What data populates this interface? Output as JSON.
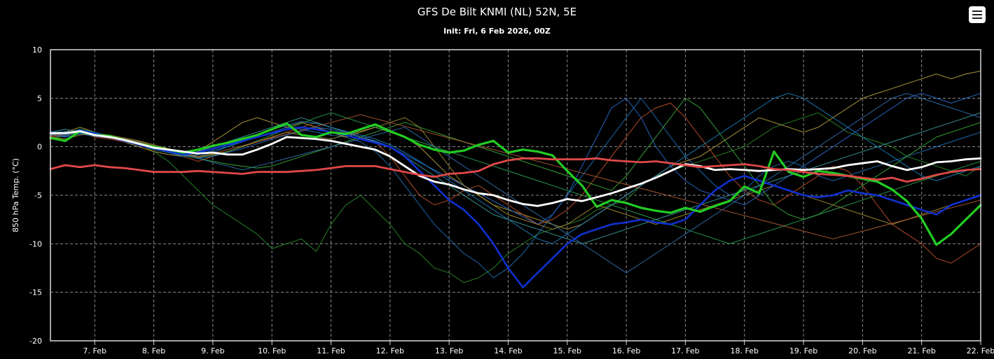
{
  "chart_data": {
    "type": "line",
    "title": "GFS De Bilt KNMI (NL) 52N, 5E",
    "subtitle": "Init: Fri, 6 Feb 2026, 00Z",
    "ylabel": "850 hPa Temp. (°C)",
    "xlabel": "",
    "ylim": [
      -20,
      10
    ],
    "yticks": [
      10,
      5,
      0,
      -5,
      -10,
      -15,
      -20
    ],
    "x_start_day": 6.25,
    "x_end_day": 22.0,
    "x_step_hours": 6,
    "xticks": [
      "7. Feb",
      "8. Feb",
      "9. Feb",
      "10. Feb",
      "11. Feb",
      "12. Feb",
      "13. Feb",
      "14. Feb",
      "15. Feb",
      "16. Feb",
      "17. Feb",
      "18. Feb",
      "19. Feb",
      "20. Feb",
      "21. Feb",
      "22. Feb"
    ],
    "xtick_days": [
      7,
      8,
      9,
      10,
      11,
      12,
      13,
      14,
      15,
      16,
      17,
      18,
      19,
      20,
      21,
      22
    ],
    "grid": true,
    "legend": "none",
    "series": [
      {
        "role": "member",
        "color": "#2a8a2a",
        "values": [
          1.0,
          0.5,
          1.5,
          1.0,
          1.2,
          0.8,
          0.3,
          -0.5,
          -1.5,
          -3.0,
          -4.5,
          -6.0,
          -7.0,
          -8.0,
          -9.0,
          -10.5,
          -10.0,
          -9.5,
          -10.8,
          -8.0,
          -6.0,
          -5.0,
          -6.5,
          -8.0,
          -10.0,
          -11.0,
          -12.5,
          -13.0,
          -14.0,
          -13.5,
          -12.5,
          -11.0,
          -10.0,
          -9.0,
          -8.5,
          -8.0,
          -7.5,
          -6.5,
          -6.0,
          -5.5,
          -4.0,
          -3.0,
          -2.5,
          -2.0,
          -1.5,
          -1.0,
          -0.5,
          0.0,
          1.0,
          2.0,
          2.5,
          3.0,
          3.5,
          2.5,
          1.5,
          1.0,
          0.5,
          0.0,
          -1.0,
          -1.5,
          -2.0,
          -2.5,
          -3.0,
          -2.0
        ]
      },
      {
        "role": "member",
        "color": "#1f6fb5",
        "values": [
          1.5,
          1.0,
          1.8,
          1.2,
          1.0,
          0.5,
          0.2,
          -0.2,
          -0.5,
          -0.8,
          -1.0,
          -0.6,
          0.0,
          0.5,
          1.0,
          1.5,
          2.0,
          1.8,
          1.5,
          1.2,
          1.0,
          0.5,
          -0.5,
          -2.0,
          -4.0,
          -6.0,
          -8.0,
          -9.5,
          -11.0,
          -12.0,
          -13.5,
          -12.5,
          -11.0,
          -9.0,
          -7.0,
          -5.0,
          -3.0,
          -1.0,
          1.0,
          3.0,
          5.0,
          3.0,
          1.0,
          -1.0,
          -2.5,
          -4.0,
          -5.0,
          -4.5,
          -3.0,
          -2.0,
          -1.5,
          -2.0,
          -3.0,
          -3.5,
          -3.0,
          -2.5,
          -2.0,
          -1.5,
          -1.0,
          -0.5,
          0.0,
          0.5,
          1.0,
          1.5
        ]
      },
      {
        "role": "member",
        "color": "#b8a040",
        "values": [
          1.2,
          1.5,
          2.0,
          1.5,
          1.0,
          0.5,
          0.0,
          -0.5,
          -0.8,
          -1.0,
          -0.5,
          0.5,
          1.5,
          2.5,
          3.0,
          2.5,
          2.0,
          2.5,
          2.0,
          1.5,
          1.0,
          1.5,
          2.0,
          1.5,
          1.0,
          0.0,
          -1.5,
          -3.0,
          -4.0,
          -5.0,
          -6.0,
          -6.5,
          -7.0,
          -7.5,
          -8.0,
          -8.5,
          -8.0,
          -7.0,
          -6.0,
          -5.0,
          -4.0,
          -3.0,
          -2.0,
          -1.5,
          -1.0,
          0.0,
          1.0,
          2.0,
          3.0,
          2.5,
          2.0,
          1.5,
          2.0,
          3.0,
          4.0,
          5.0,
          5.5,
          6.0,
          6.5,
          7.0,
          7.5,
          7.0,
          7.5,
          7.8
        ]
      },
      {
        "role": "member",
        "color": "#c0502a",
        "values": [
          1.0,
          1.2,
          1.5,
          1.0,
          0.8,
          0.5,
          0.3,
          0.0,
          -0.5,
          -1.0,
          -1.5,
          -1.0,
          -0.5,
          0.0,
          0.5,
          1.0,
          1.5,
          2.0,
          2.5,
          2.0,
          1.5,
          1.0,
          0.5,
          -1.0,
          -3.0,
          -5.0,
          -6.0,
          -5.5,
          -4.5,
          -4.0,
          -5.0,
          -6.0,
          -7.0,
          -8.0,
          -7.5,
          -6.5,
          -5.0,
          -3.0,
          -1.0,
          1.0,
          3.0,
          4.0,
          4.5,
          3.0,
          1.0,
          -1.0,
          -3.0,
          -4.5,
          -5.5,
          -6.0,
          -5.0,
          -4.0,
          -3.0,
          -2.0,
          -2.5,
          -4.0,
          -6.0,
          -8.0,
          -9.0,
          -10.0,
          -11.5,
          -12.0,
          -11.0,
          -10.0
        ]
      },
      {
        "role": "member",
        "color": "#3a9a9a",
        "values": [
          1.5,
          1.8,
          1.5,
          1.2,
          1.0,
          0.8,
          0.5,
          0.0,
          -0.5,
          -0.8,
          -0.5,
          0.0,
          0.5,
          1.0,
          1.5,
          2.0,
          2.5,
          3.0,
          2.5,
          2.0,
          1.5,
          1.0,
          0.5,
          0.0,
          -1.0,
          -2.0,
          -3.0,
          -4.0,
          -5.0,
          -6.0,
          -7.0,
          -7.5,
          -8.0,
          -8.5,
          -9.0,
          -9.5,
          -10.0,
          -9.5,
          -9.0,
          -8.5,
          -8.0,
          -7.5,
          -7.0,
          -6.5,
          -6.0,
          -5.5,
          -5.0,
          -4.5,
          -4.0,
          -3.5,
          -3.0,
          -2.5,
          -2.0,
          -1.5,
          -1.0,
          -0.5,
          0.0,
          0.5,
          1.0,
          1.5,
          2.0,
          2.5,
          3.0,
          3.5
        ]
      },
      {
        "role": "member",
        "color": "#2a6ad0",
        "values": [
          1.2,
          1.0,
          1.3,
          1.1,
          0.9,
          0.7,
          0.4,
          0.0,
          -0.4,
          -0.8,
          -1.2,
          -1.0,
          -0.6,
          -0.2,
          0.3,
          0.8,
          1.2,
          1.6,
          2.0,
          1.8,
          1.4,
          1.0,
          0.6,
          0.0,
          -0.8,
          -1.6,
          -2.4,
          -3.2,
          -4.0,
          -4.8,
          -5.6,
          -6.4,
          -7.2,
          -8.0,
          -7.0,
          -5.0,
          -2.0,
          1.0,
          4.0,
          5.0,
          3.0,
          0.0,
          -2.0,
          -3.5,
          -4.5,
          -5.0,
          -5.5,
          -6.0,
          -5.0,
          -4.0,
          -3.0,
          -2.0,
          -1.0,
          0.0,
          1.0,
          2.0,
          3.0,
          4.0,
          5.0,
          5.5,
          5.0,
          4.5,
          5.0,
          5.5
        ]
      },
      {
        "role": "member",
        "color": "#3aaa3a",
        "values": [
          0.8,
          1.2,
          1.6,
          1.3,
          1.0,
          0.6,
          0.2,
          -0.3,
          -0.6,
          -0.9,
          -1.2,
          -1.5,
          -1.8,
          -2.0,
          -2.2,
          -2.0,
          -1.5,
          -1.0,
          -0.5,
          0.0,
          0.5,
          1.0,
          1.5,
          2.0,
          2.5,
          2.0,
          1.5,
          1.0,
          0.5,
          0.0,
          -0.5,
          -1.0,
          -1.5,
          -2.0,
          -2.5,
          -3.0,
          -3.5,
          -4.0,
          -4.5,
          -3.0,
          -1.0,
          1.0,
          3.0,
          5.0,
          4.0,
          2.0,
          0.0,
          -2.0,
          -4.0,
          -6.0,
          -7.0,
          -7.5,
          -7.0,
          -6.0,
          -5.0,
          -4.0,
          -3.0,
          -2.0,
          -1.0,
          0.0,
          1.0,
          1.5,
          2.0,
          2.5
        ]
      },
      {
        "role": "member",
        "color": "#1a80c0",
        "values": [
          1.4,
          1.6,
          1.4,
          1.2,
          1.0,
          0.7,
          0.3,
          -0.2,
          -0.6,
          -1.0,
          -0.8,
          -0.4,
          0.0,
          0.6,
          1.2,
          1.8,
          2.2,
          2.6,
          2.4,
          2.0,
          1.6,
          1.2,
          0.8,
          0.2,
          -0.6,
          -1.5,
          -2.5,
          -3.5,
          -4.5,
          -5.5,
          -6.5,
          -7.5,
          -8.5,
          -9.5,
          -10.0,
          -9.0,
          -8.0,
          -7.0,
          -6.0,
          -5.0,
          -4.0,
          -3.0,
          -2.0,
          -1.0,
          0.0,
          1.0,
          2.0,
          3.0,
          4.0,
          5.0,
          5.5,
          5.0,
          4.0,
          3.0,
          2.0,
          1.0,
          0.0,
          -1.0,
          -2.0,
          -3.0,
          -3.5,
          -3.0,
          -2.5,
          -2.0
        ]
      },
      {
        "role": "member",
        "color": "#a08a30",
        "values": [
          1.0,
          0.8,
          1.2,
          1.4,
          1.2,
          0.9,
          0.6,
          0.2,
          -0.2,
          -0.6,
          -1.0,
          -0.8,
          -0.5,
          0.0,
          0.5,
          1.0,
          1.5,
          1.2,
          1.0,
          0.8,
          1.2,
          1.6,
          2.0,
          2.5,
          3.0,
          2.0,
          0.0,
          -2.0,
          -4.0,
          -5.0,
          -6.0,
          -7.0,
          -7.5,
          -8.0,
          -8.5,
          -8.0,
          -7.0,
          -6.0,
          -6.5,
          -7.0,
          -7.5,
          -8.0,
          -7.5,
          -7.0,
          -6.5,
          -6.0,
          -5.5,
          -5.0,
          -4.5,
          -4.0,
          -4.5,
          -5.0,
          -5.5,
          -6.0,
          -6.5,
          -7.0,
          -7.5,
          -8.0,
          -7.5,
          -7.0,
          -6.5,
          -6.0,
          -5.5,
          -5.0
        ]
      },
      {
        "role": "member",
        "color": "#2aa050",
        "values": [
          1.6,
          1.4,
          1.8,
          1.5,
          1.1,
          0.8,
          0.5,
          0.1,
          -0.3,
          -0.7,
          -1.1,
          -0.9,
          -0.5,
          0.0,
          0.6,
          1.2,
          1.8,
          2.4,
          3.0,
          3.5,
          3.0,
          2.5,
          2.0,
          1.5,
          1.0,
          0.5,
          0.0,
          -0.5,
          -1.0,
          -1.5,
          -2.0,
          -2.5,
          -3.0,
          -3.5,
          -4.0,
          -4.5,
          -5.0,
          -5.5,
          -6.0,
          -6.5,
          -7.0,
          -7.5,
          -8.0,
          -8.5,
          -9.0,
          -9.5,
          -10.0,
          -9.5,
          -9.0,
          -8.5,
          -8.0,
          -7.5,
          -7.0,
          -6.5,
          -6.0,
          -5.5,
          -5.0,
          -4.5,
          -4.0,
          -3.5,
          -3.0,
          -2.5,
          -2.0,
          -1.5
        ]
      },
      {
        "role": "member",
        "color": "#3070b0",
        "values": [
          1.3,
          1.1,
          1.5,
          1.3,
          1.0,
          0.7,
          0.4,
          0.0,
          -0.4,
          -0.8,
          -1.2,
          -1.6,
          -2.0,
          -2.4,
          -2.0,
          -1.6,
          -1.2,
          -0.8,
          -0.4,
          0.0,
          0.4,
          0.8,
          1.2,
          1.6,
          2.0,
          1.0,
          0.0,
          -1.0,
          -2.0,
          -3.0,
          -4.0,
          -5.0,
          -6.0,
          -7.0,
          -8.0,
          -9.0,
          -10.0,
          -11.0,
          -12.0,
          -13.0,
          -12.0,
          -11.0,
          -10.0,
          -9.0,
          -8.0,
          -7.0,
          -6.0,
          -5.0,
          -4.0,
          -3.0,
          -2.0,
          -1.0,
          0.0,
          1.0,
          2.0,
          3.0,
          4.0,
          5.0,
          5.5,
          5.0,
          4.5,
          4.0,
          3.5,
          3.0
        ]
      },
      {
        "role": "member",
        "color": "#b05a30",
        "values": [
          1.1,
          1.3,
          1.7,
          1.4,
          1.1,
          0.8,
          0.5,
          0.1,
          -0.3,
          -0.7,
          -1.1,
          -0.7,
          -0.3,
          0.1,
          0.5,
          0.9,
          1.3,
          1.7,
          2.1,
          2.5,
          2.9,
          3.3,
          2.9,
          2.5,
          2.1,
          1.7,
          1.3,
          0.9,
          0.5,
          0.1,
          -0.3,
          -0.7,
          -1.1,
          -1.5,
          -1.9,
          -2.3,
          -2.7,
          -3.1,
          -3.5,
          -3.9,
          -4.3,
          -4.7,
          -5.1,
          -5.5,
          -5.9,
          -6.3,
          -6.7,
          -7.1,
          -7.5,
          -7.9,
          -8.3,
          -8.7,
          -9.1,
          -9.5,
          -9.1,
          -8.7,
          -8.3,
          -7.9,
          -7.5,
          -7.1,
          -6.7,
          -6.3,
          -5.9,
          -5.5
        ]
      },
      {
        "role": "control",
        "name": "",
        "color": "#1030d0",
        "width": 2.6,
        "values": [
          1.5,
          1.3,
          1.7,
          1.4,
          1.0,
          0.6,
          0.2,
          -0.2,
          -0.5,
          -0.8,
          -0.6,
          -0.2,
          0.2,
          0.6,
          1.0,
          1.4,
          1.8,
          2.0,
          1.8,
          1.5,
          1.2,
          0.8,
          0.4,
          0.0,
          -1.0,
          -2.5,
          -4.0,
          -5.5,
          -6.5,
          -8.0,
          -10.0,
          -12.5,
          -14.5,
          -13.0,
          -11.5,
          -10.0,
          -9.0,
          -8.5,
          -8.0,
          -7.8,
          -7.5,
          -7.8,
          -8.0,
          -7.5,
          -6.0,
          -4.5,
          -3.5,
          -3.0,
          -3.5,
          -4.0,
          -4.5,
          -5.0,
          -5.2,
          -5.0,
          -4.5,
          -4.8,
          -5.0,
          -5.5,
          -6.0,
          -6.5,
          -7.0,
          -6.0,
          -5.5,
          -5.0
        ]
      },
      {
        "role": "operational",
        "name": "",
        "color": "#22cc22",
        "width": 3.2,
        "values": [
          0.9,
          0.6,
          1.6,
          1.2,
          1.1,
          0.7,
          0.3,
          0.0,
          -0.3,
          -0.6,
          -0.3,
          0.1,
          0.4,
          0.8,
          1.2,
          1.8,
          2.4,
          1.2,
          1.0,
          1.5,
          1.3,
          1.8,
          2.3,
          1.6,
          1.0,
          0.2,
          -0.3,
          -0.6,
          -0.4,
          0.2,
          0.6,
          -0.6,
          -0.3,
          -0.5,
          -0.9,
          -2.5,
          -4.0,
          -6.2,
          -5.5,
          -5.8,
          -6.3,
          -6.6,
          -6.8,
          -6.3,
          -6.7,
          -6.1,
          -5.6,
          -4.1,
          -4.8,
          -0.5,
          -2.6,
          -3.1,
          -2.5,
          -2.7,
          -3.0,
          -3.3,
          -3.6,
          -4.4,
          -5.6,
          -7.4,
          -10.1,
          -9.0,
          -7.5,
          -6.0
        ]
      },
      {
        "role": "mean",
        "name": "",
        "color": "#ffffff",
        "width": 2.8,
        "values": [
          1.4,
          1.4,
          1.6,
          1.2,
          1.0,
          0.7,
          0.3,
          -0.1,
          -0.3,
          -0.5,
          -0.7,
          -0.6,
          -0.8,
          -0.8,
          -0.3,
          0.3,
          1.0,
          0.9,
          0.8,
          0.6,
          0.3,
          0.0,
          -0.3,
          -1.0,
          -2.0,
          -3.0,
          -3.6,
          -3.9,
          -4.4,
          -4.8,
          -5.0,
          -5.5,
          -5.9,
          -6.1,
          -5.8,
          -5.4,
          -5.6,
          -5.2,
          -4.8,
          -4.3,
          -3.8,
          -3.2,
          -2.5,
          -1.8,
          -2.0,
          -2.4,
          -2.3,
          -2.4,
          -2.5,
          -2.4,
          -2.3,
          -2.4,
          -2.3,
          -2.2,
          -1.9,
          -1.7,
          -1.5,
          -2.0,
          -2.4,
          -2.1,
          -1.6,
          -1.5,
          -1.3,
          -1.2
        ]
      },
      {
        "role": "climate",
        "name": "",
        "color": "#e04848",
        "width": 2.8,
        "values": [
          -2.3,
          -1.9,
          -2.1,
          -1.9,
          -2.1,
          -2.2,
          -2.4,
          -2.6,
          -2.6,
          -2.6,
          -2.5,
          -2.6,
          -2.7,
          -2.8,
          -2.6,
          -2.6,
          -2.6,
          -2.5,
          -2.4,
          -2.2,
          -2.0,
          -2.0,
          -2.0,
          -2.3,
          -2.6,
          -2.9,
          -3.1,
          -2.8,
          -2.7,
          -2.5,
          -1.8,
          -1.4,
          -1.2,
          -1.2,
          -1.3,
          -1.3,
          -1.3,
          -1.2,
          -1.4,
          -1.5,
          -1.6,
          -1.5,
          -1.7,
          -1.9,
          -2.1,
          -2.0,
          -1.9,
          -1.8,
          -2.0,
          -2.3,
          -2.4,
          -2.6,
          -2.8,
          -2.9,
          -3.0,
          -3.2,
          -3.4,
          -3.2,
          -3.6,
          -3.3,
          -2.9,
          -2.6,
          -2.4,
          -2.3
        ]
      }
    ]
  }
}
